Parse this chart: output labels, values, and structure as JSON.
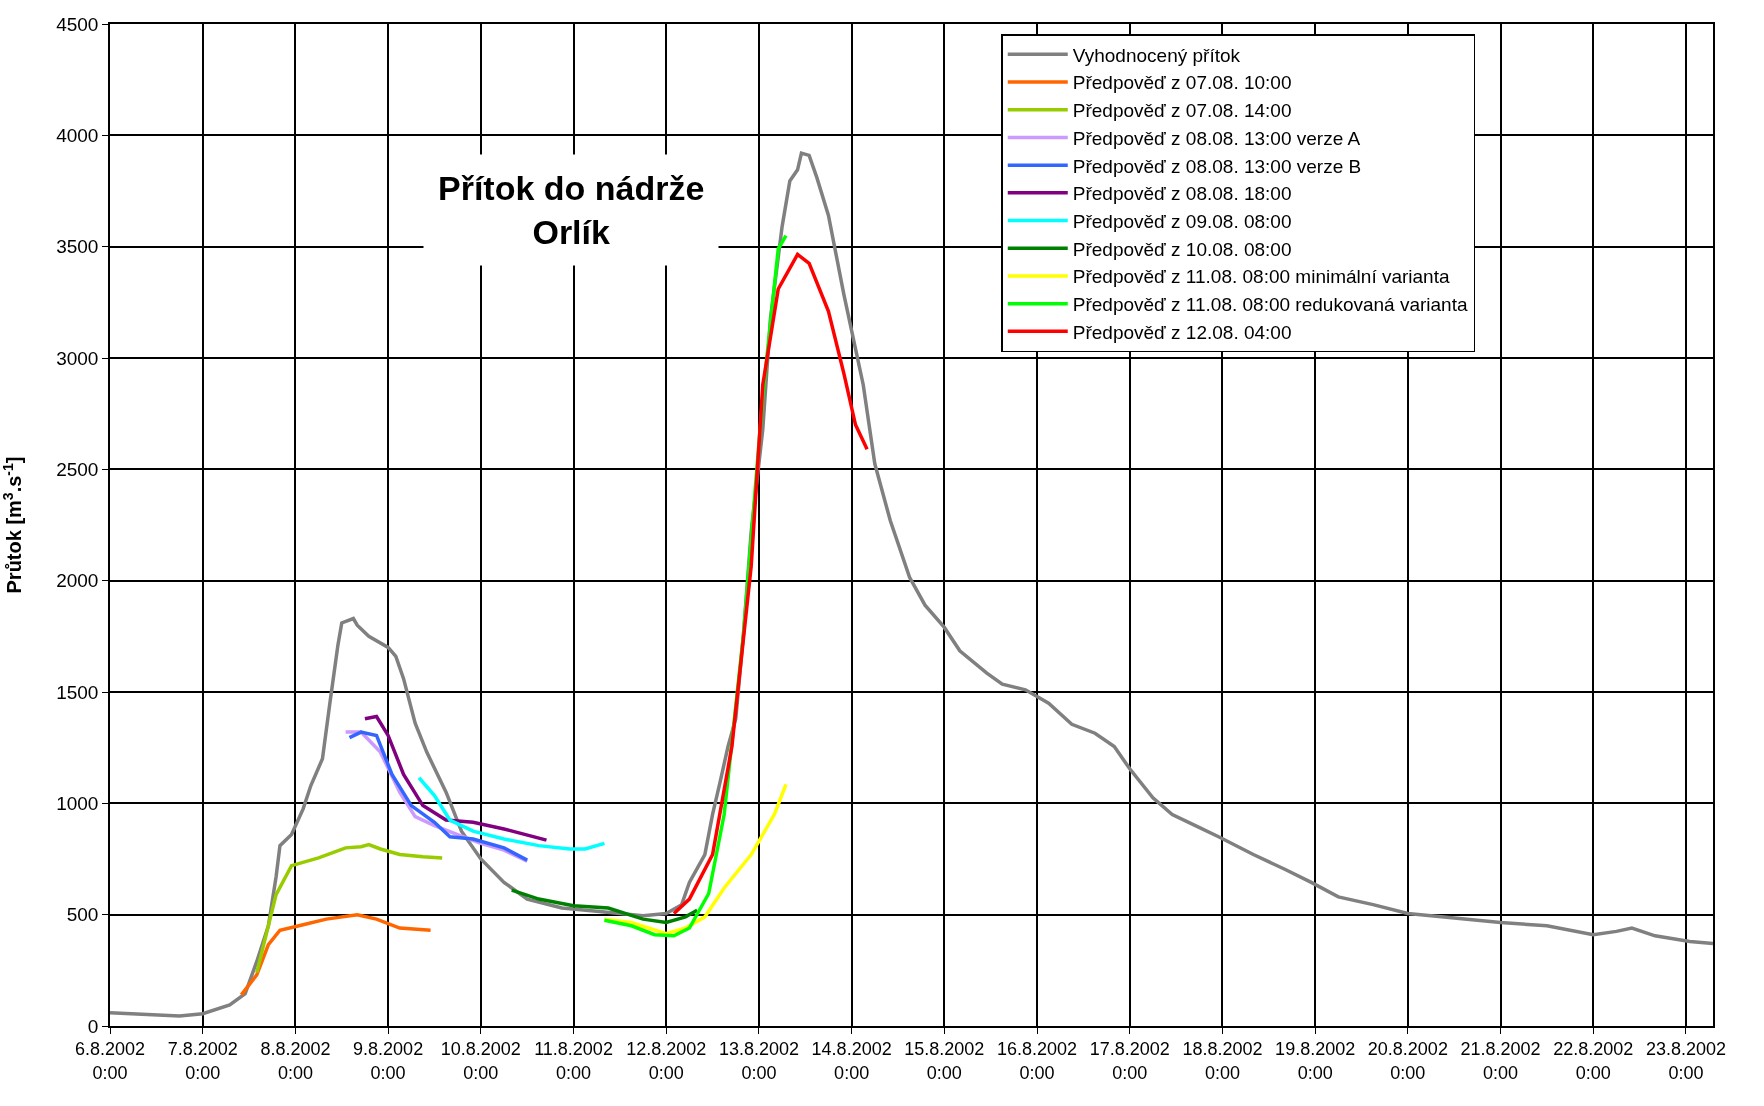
{
  "chart_data": {
    "type": "line",
    "title": "Přítok do nádrže Orlík",
    "ylabel": "Průtok [m$^{3}$.s$^{-1}$]",
    "xlim": [
      "2002-08-06T00:00",
      "2002-08-23T07:00"
    ],
    "xticks": [
      {
        "value": "2002-08-06",
        "label": "6.8.2002 0:00"
      },
      {
        "value": "2002-08-07",
        "label": "7.8.2002 0:00"
      },
      {
        "value": "2002-08-08",
        "label": "8.8.2002 0:00"
      },
      {
        "value": "2002-08-09",
        "label": "9.8.2002 0:00"
      },
      {
        "value": "2002-08-10",
        "label": "10.8.2002 0:00"
      },
      {
        "value": "2002-08-11",
        "label": "11.8.2002 0:00"
      },
      {
        "value": "2002-08-12",
        "label": "12.8.2002 0:00"
      },
      {
        "value": "2002-08-13",
        "label": "13.8.2002 0:00"
      },
      {
        "value": "2002-08-14",
        "label": "14.8.2002 0:00"
      },
      {
        "value": "2002-08-15",
        "label": "15.8.2002 0:00"
      },
      {
        "value": "2002-08-16",
        "label": "16.8.2002 0:00"
      },
      {
        "value": "2002-08-17",
        "label": "17.8.2002 0:00"
      },
      {
        "value": "2002-08-18",
        "label": "18.8.2002 0:00"
      },
      {
        "value": "2002-08-19",
        "label": "19.8.2002 0:00"
      },
      {
        "value": "2002-08-20",
        "label": "20.8.2002 0:00"
      },
      {
        "value": "2002-08-21",
        "label": "21.8.2002 0:00"
      },
      {
        "value": "2002-08-22",
        "label": "22.8.2002 0:00"
      },
      {
        "value": "2002-08-23",
        "label": "23.8.2002 0:00"
      }
    ],
    "ylim": [
      0,
      4500
    ],
    "yticks": [
      0,
      500,
      1000,
      1500,
      2000,
      2500,
      3000,
      3500,
      4000,
      4500
    ],
    "grid": true,
    "legend": "top right",
    "marker": "none",
    "line_style": "solid",
    "series": [
      {
        "name": "Vyhodnocený přítok",
        "color": "#808080",
        "x": [
          "2002-08-06T00:00",
          "2002-08-06T11:00",
          "2002-08-06T18:00",
          "2002-08-07T00:00",
          "2002-08-07T07:00",
          "2002-08-07T11:00",
          "2002-08-07T14:00",
          "2002-08-07T17:00",
          "2002-08-07T19:00",
          "2002-08-07T20:00",
          "2002-08-07T23:00",
          "2002-08-08T02:00",
          "2002-08-08T04:00",
          "2002-08-08T07:00",
          "2002-08-08T09:00",
          "2002-08-08T11:00",
          "2002-08-08T12:00",
          "2002-08-08T15:00",
          "2002-08-08T16:00",
          "2002-08-08T19:00",
          "2002-08-09T00:00",
          "2002-08-09T02:00",
          "2002-08-09T04:00",
          "2002-08-09T07:00",
          "2002-08-09T10:00",
          "2002-08-09T15:00",
          "2002-08-09T19:00",
          "2002-08-10T00:00",
          "2002-08-10T06:00",
          "2002-08-10T12:00",
          "2002-08-10T21:00",
          "2002-08-11T06:00",
          "2002-08-11T12:00",
          "2002-08-11T18:00",
          "2002-08-12T00:00",
          "2002-08-12T04:00",
          "2002-08-12T06:00",
          "2002-08-12T10:00",
          "2002-08-12T12:00",
          "2002-08-12T14:00",
          "2002-08-12T16:00",
          "2002-08-12T18:00",
          "2002-08-12T20:00",
          "2002-08-12T22:00",
          "2002-08-13T01:00",
          "2002-08-13T03:00",
          "2002-08-13T06:00",
          "2002-08-13T08:00",
          "2002-08-13T10:00",
          "2002-08-13T11:00",
          "2002-08-13T13:00",
          "2002-08-13T15:00",
          "2002-08-13T18:00",
          "2002-08-13T22:00",
          "2002-08-14T03:00",
          "2002-08-14T06:00",
          "2002-08-14T10:00",
          "2002-08-14T15:00",
          "2002-08-14T19:00",
          "2002-08-15T00:00",
          "2002-08-15T04:00",
          "2002-08-15T11:00",
          "2002-08-15T15:00",
          "2002-08-15T21:00",
          "2002-08-16T03:00",
          "2002-08-16T09:00",
          "2002-08-16T15:00",
          "2002-08-16T20:00",
          "2002-08-17T00:00",
          "2002-08-17T06:00",
          "2002-08-17T11:00",
          "2002-08-17T17:00",
          "2002-08-17T23:00",
          "2002-08-18T08:00",
          "2002-08-18T16:00",
          "2002-08-18T23:00",
          "2002-08-19T06:00",
          "2002-08-19T15:00",
          "2002-08-20T00:00",
          "2002-08-20T12:00",
          "2002-08-21T00:00",
          "2002-08-21T12:00",
          "2002-08-22T00:00",
          "2002-08-22T06:00",
          "2002-08-22T10:00",
          "2002-08-22T16:00",
          "2002-08-23T01:00",
          "2002-08-23T07:00"
        ],
        "values": [
          60,
          50,
          45,
          55,
          95,
          145,
          290,
          450,
          670,
          810,
          860,
          975,
          1080,
          1200,
          1460,
          1710,
          1810,
          1830,
          1800,
          1750,
          1700,
          1660,
          1560,
          1360,
          1230,
          1050,
          875,
          750,
          645,
          570,
          530,
          515,
          505,
          495,
          505,
          545,
          645,
          770,
          950,
          1100,
          1255,
          1380,
          1760,
          2220,
          2680,
          3180,
          3590,
          3795,
          3845,
          3920,
          3910,
          3810,
          3640,
          3285,
          2880,
          2525,
          2270,
          2015,
          1890,
          1790,
          1685,
          1585,
          1535,
          1510,
          1450,
          1355,
          1315,
          1255,
          1155,
          1025,
          950,
          900,
          850,
          770,
          705,
          645,
          580,
          545,
          505,
          485,
          465,
          450,
          410,
          425,
          440,
          405,
          380,
          370
        ]
      },
      {
        "name": "Předpověď z 07.08. 10:00",
        "color": "#ff6600",
        "x": [
          "2002-08-07T10:00",
          "2002-08-07T14:00",
          "2002-08-07T17:00",
          "2002-08-07T20:00",
          "2002-08-08T02:00",
          "2002-08-08T08:00",
          "2002-08-08T16:00",
          "2002-08-08T21:00",
          "2002-08-09T03:00",
          "2002-08-09T11:00"
        ],
        "values": [
          140,
          230,
          365,
          430,
          455,
          480,
          500,
          480,
          440,
          430
        ]
      },
      {
        "name": "Předpověď z 07.08. 14:00",
        "color": "#99cc00",
        "x": [
          "2002-08-07T14:00",
          "2002-08-07T19:00",
          "2002-08-07T23:00",
          "2002-08-08T06:00",
          "2002-08-08T13:00",
          "2002-08-08T17:00",
          "2002-08-08T19:00",
          "2002-08-08T22:00",
          "2002-08-09T03:00",
          "2002-08-09T09:00",
          "2002-08-09T14:00"
        ],
        "values": [
          240,
          590,
          720,
          755,
          800,
          805,
          815,
          795,
          770,
          760,
          755
        ]
      },
      {
        "name": "Předpověď z 08.08. 13:00 verze A",
        "color": "#cc99ff",
        "x": [
          "2002-08-08T13:00",
          "2002-08-08T17:00",
          "2002-08-08T22:00",
          "2002-08-09T03:00",
          "2002-08-09T07:00",
          "2002-08-09T12:00",
          "2002-08-09T18:00",
          "2002-08-10T00:00",
          "2002-08-10T06:00",
          "2002-08-10T12:00"
        ],
        "values": [
          1320,
          1320,
          1230,
          1050,
          940,
          900,
          860,
          820,
          790,
          740
        ]
      },
      {
        "name": "Předpověď z 08.08. 13:00 verze B",
        "color": "#3366ff",
        "x": [
          "2002-08-08T14:00",
          "2002-08-08T17:00",
          "2002-08-08T21:00",
          "2002-08-09T01:00",
          "2002-08-09T06:00",
          "2002-08-09T12:00",
          "2002-08-09T16:00",
          "2002-08-09T22:00",
          "2002-08-10T06:00",
          "2002-08-10T12:00"
        ],
        "values": [
          1295,
          1320,
          1305,
          1130,
          990,
          915,
          850,
          840,
          800,
          745
        ]
      },
      {
        "name": "Předpověď z 08.08. 18:00",
        "color": "#800080",
        "x": [
          "2002-08-08T18:00",
          "2002-08-08T21:00",
          "2002-08-09T00:00",
          "2002-08-09T04:00",
          "2002-08-09T09:00",
          "2002-08-09T15:00",
          "2002-08-09T22:00",
          "2002-08-10T06:00",
          "2002-08-10T17:00"
        ],
        "values": [
          1380,
          1390,
          1305,
          1130,
          990,
          925,
          915,
          885,
          835
        ]
      },
      {
        "name": "Předpověď z 09.08. 08:00",
        "color": "#00ffff",
        "x": [
          "2002-08-09T08:00",
          "2002-08-09T12:00",
          "2002-08-09T16:00",
          "2002-08-09T22:00",
          "2002-08-10T06:00",
          "2002-08-10T15:00",
          "2002-08-10T23:00",
          "2002-08-11T03:00",
          "2002-08-11T08:00"
        ],
        "values": [
          1115,
          1035,
          925,
          875,
          840,
          810,
          795,
          795,
          820
        ]
      },
      {
        "name": "Předpověď z 10.08. 08:00",
        "color": "#008000",
        "x": [
          "2002-08-10T08:00",
          "2002-08-10T15:00",
          "2002-08-11T00:00",
          "2002-08-11T09:00",
          "2002-08-11T18:00",
          "2002-08-12T00:00",
          "2002-08-12T05:00",
          "2002-08-12T08:00"
        ],
        "values": [
          610,
          570,
          540,
          530,
          480,
          465,
          490,
          520
        ]
      },
      {
        "name": "Předpověď z 11.08. 08:00 minimální varianta",
        "color": "#ffff00",
        "x": [
          "2002-08-11T08:00",
          "2002-08-11T15:00",
          "2002-08-12T00:00",
          "2002-08-12T05:00",
          "2002-08-12T10:00",
          "2002-08-12T15:00",
          "2002-08-12T22:00",
          "2002-08-13T04:00",
          "2002-08-13T07:00"
        ],
        "values": [
          480,
          465,
          415,
          440,
          490,
          620,
          770,
          950,
          1085
        ]
      },
      {
        "name": "Předpověď z 11.08. 08:00 redukovaná varianta",
        "color": "#00ff00",
        "x": [
          "2002-08-11T08:00",
          "2002-08-11T15:00",
          "2002-08-11T21:00",
          "2002-08-12T02:00",
          "2002-08-12T06:00",
          "2002-08-12T11:00",
          "2002-08-12T15:00",
          "2002-08-12T20:00",
          "2002-08-13T01:00",
          "2002-08-13T05:00",
          "2002-08-13T07:00"
        ],
        "values": [
          475,
          450,
          410,
          405,
          440,
          595,
          950,
          1760,
          2830,
          3490,
          3550
        ]
      },
      {
        "name": "Předpověď z 12.08. 04:00",
        "color": "#ff0000",
        "x": [
          "2002-08-12T02:00",
          "2002-08-12T06:00",
          "2002-08-12T12:00",
          "2002-08-12T17:00",
          "2002-08-12T22:00",
          "2002-08-13T01:00",
          "2002-08-13T05:00",
          "2002-08-13T10:00",
          "2002-08-13T13:00",
          "2002-08-13T18:00",
          "2002-08-13T22:00",
          "2002-08-14T01:00",
          "2002-08-14T04:00"
        ],
        "values": [
          505,
          570,
          770,
          1255,
          2065,
          2880,
          3310,
          3465,
          3425,
          3210,
          2930,
          2700,
          2590
        ]
      }
    ]
  }
}
